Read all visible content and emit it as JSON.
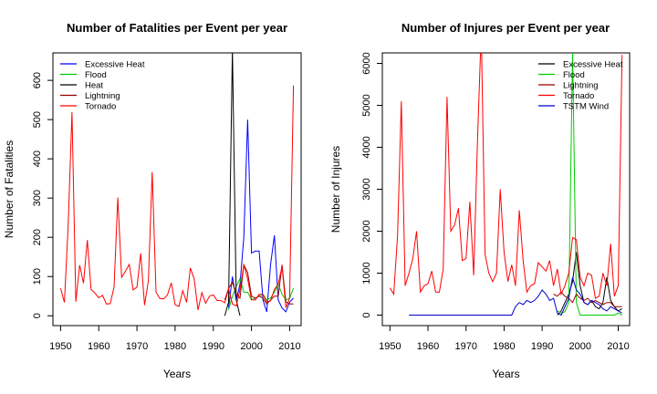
{
  "chart_data": [
    {
      "type": "line",
      "title": "Number of Fatalities per Event per year",
      "xlabel": "Years",
      "ylabel": "Number of Fatalities",
      "xlim": [
        1948,
        2013
      ],
      "ylim": [
        -25,
        670
      ],
      "xticks": [
        1950,
        1960,
        1970,
        1980,
        1990,
        2000,
        2010
      ],
      "yticks": [
        0,
        100,
        200,
        300,
        400,
        500,
        600
      ],
      "legend_position": "top-left",
      "series": [
        {
          "name": "Excessive Heat",
          "color": "#0000ff",
          "x": [
            1994,
            1995,
            1996,
            1997,
            1998,
            1999,
            2000,
            2001,
            2002,
            2003,
            2004,
            2005,
            2006,
            2007,
            2008,
            2009,
            2010,
            2011
          ],
          "y": [
            20,
            100,
            40,
            80,
            200,
            500,
            160,
            165,
            165,
            40,
            10,
            130,
            205,
            40,
            20,
            10,
            35,
            45
          ]
        },
        {
          "name": "Flood",
          "color": "#00cc00",
          "x": [
            1994,
            1995,
            1996,
            1997,
            1998,
            1999,
            2000,
            2001,
            2002,
            2003,
            2004,
            2005,
            2006,
            2007,
            2008,
            2009,
            2010,
            2011
          ],
          "y": [
            15,
            50,
            75,
            95,
            60,
            60,
            40,
            45,
            50,
            55,
            40,
            45,
            60,
            80,
            55,
            40,
            45,
            70
          ]
        },
        {
          "name": "Heat",
          "color": "#000000",
          "x": [
            1993,
            1994,
            1995,
            1996,
            1997
          ],
          "y": [
            0,
            35,
            680,
            40,
            0
          ]
        },
        {
          "name": "Lightning",
          "color": "#990000",
          "x": [
            1993,
            1994,
            1995,
            1996,
            1997,
            1998,
            1999,
            2000,
            2001,
            2002,
            2003,
            2004,
            2005,
            2006,
            2007,
            2008,
            2009,
            2010,
            2011
          ],
          "y": [
            40,
            70,
            85,
            55,
            45,
            130,
            110,
            50,
            45,
            50,
            45,
            30,
            40,
            50,
            50,
            130,
            35,
            30,
            30
          ]
        },
        {
          "name": "Tornado",
          "color": "#ff0000",
          "x": [
            1950,
            1951,
            1952,
            1953,
            1954,
            1955,
            1956,
            1957,
            1958,
            1959,
            1960,
            1961,
            1962,
            1963,
            1964,
            1965,
            1966,
            1967,
            1968,
            1969,
            1970,
            1971,
            1972,
            1973,
            1974,
            1975,
            1976,
            1977,
            1978,
            1979,
            1980,
            1981,
            1982,
            1983,
            1984,
            1985,
            1986,
            1987,
            1988,
            1989,
            1990,
            1991,
            1992,
            1993,
            1994,
            1995,
            1996,
            1997,
            1998,
            1999,
            2000,
            2001,
            2002,
            2003,
            2004,
            2005,
            2006,
            2007,
            2008,
            2009,
            2010,
            2011
          ],
          "y": [
            70,
            34,
            230,
            519,
            36,
            129,
            83,
            193,
            67,
            58,
            46,
            52,
            30,
            31,
            73,
            301,
            98,
            114,
            131,
            66,
            73,
            159,
            27,
            89,
            366,
            60,
            44,
            43,
            53,
            84,
            28,
            24,
            64,
            34,
            122,
            94,
            15,
            59,
            32,
            50,
            53,
            39,
            39,
            33,
            69,
            30,
            25,
            67,
            130,
            94,
            41,
            40,
            55,
            54,
            35,
            38,
            67,
            81,
            126,
            21,
            45,
            587
          ]
        }
      ]
    },
    {
      "type": "line",
      "title": "Number of Injures per Event per year",
      "xlabel": "Years",
      "ylabel": "Number of Injures",
      "xlim": [
        1948,
        2013
      ],
      "ylim": [
        -250,
        6250
      ],
      "xticks": [
        1950,
        1960,
        1970,
        1980,
        1990,
        2000,
        2010
      ],
      "yticks": [
        0,
        1000,
        2000,
        3000,
        4000,
        5000,
        6000
      ],
      "legend_position": "top-right",
      "series": [
        {
          "name": "Excessive Heat",
          "color": "#000000",
          "x": [
            1994,
            1995,
            1996,
            1997,
            1998,
            1999,
            2000,
            2001,
            2002,
            2003,
            2004,
            2005,
            2006,
            2007,
            2008,
            2009,
            2010,
            2011
          ],
          "y": [
            0,
            100,
            300,
            500,
            800,
            1500,
            700,
            300,
            250,
            350,
            200,
            150,
            300,
            900,
            350,
            200,
            100,
            150
          ]
        },
        {
          "name": "Flood",
          "color": "#00cc00",
          "x": [
            1994,
            1995,
            1996,
            1997,
            1998,
            1999,
            2000,
            2001,
            2002,
            2003,
            2004,
            2005,
            2006,
            2007,
            2008,
            2009,
            2010,
            2011
          ],
          "y": [
            100,
            50,
            80,
            300,
            6300,
            300,
            0,
            0,
            0,
            0,
            0,
            0,
            0,
            0,
            0,
            0,
            50,
            0
          ]
        },
        {
          "name": "Lightning",
          "color": "#990000",
          "x": [
            1993,
            1994,
            1995,
            1996,
            1997,
            1998,
            1999,
            2000,
            2001,
            2002,
            2003,
            2004,
            2005,
            2006,
            2007,
            2008,
            2009,
            2010,
            2011
          ],
          "y": [
            500,
            450,
            550,
            450,
            400,
            300,
            500,
            400,
            350,
            400,
            300,
            350,
            300,
            250,
            300,
            300,
            200,
            200,
            200
          ]
        },
        {
          "name": "Tornado",
          "color": "#ff0000",
          "x": [
            1950,
            1951,
            1952,
            1953,
            1954,
            1955,
            1956,
            1957,
            1958,
            1959,
            1960,
            1961,
            1962,
            1963,
            1964,
            1965,
            1966,
            1967,
            1968,
            1969,
            1970,
            1971,
            1972,
            1973,
            1974,
            1975,
            1976,
            1977,
            1978,
            1979,
            1980,
            1981,
            1982,
            1983,
            1984,
            1985,
            1986,
            1987,
            1988,
            1989,
            1990,
            1991,
            1992,
            1993,
            1994,
            1995,
            1996,
            1997,
            1998,
            1999,
            2000,
            2001,
            2002,
            2003,
            2004,
            2005,
            2006,
            2007,
            2008,
            2009,
            2010,
            2011
          ],
          "y": [
            650,
            500,
            1900,
            5100,
            700,
            1000,
            1350,
            2000,
            550,
            700,
            750,
            1050,
            550,
            550,
            1100,
            5200,
            2000,
            2150,
            2550,
            1300,
            1350,
            2700,
            950,
            4100,
            6800,
            1450,
            1000,
            800,
            1000,
            3000,
            1500,
            800,
            1200,
            700,
            2500,
            1300,
            550,
            700,
            750,
            1250,
            1150,
            1050,
            1300,
            700,
            1100,
            500,
            700,
            1000,
            1850,
            1800,
            900,
            700,
            1000,
            950,
            400,
            450,
            1000,
            700,
            1700,
            450,
            700,
            6200
          ]
        },
        {
          "name": "TSTM Wind",
          "color": "#0000cc",
          "x": [
            1955,
            1960,
            1965,
            1970,
            1975,
            1980,
            1982,
            1983,
            1984,
            1985,
            1986,
            1987,
            1988,
            1989,
            1990,
            1991,
            1992,
            1993,
            1994,
            1995,
            1996,
            1997,
            1998,
            1999,
            2000,
            2001,
            2002,
            2003,
            2004,
            2005,
            2006,
            2007,
            2008,
            2009,
            2010,
            2011
          ],
          "y": [
            0,
            0,
            0,
            0,
            0,
            0,
            0,
            200,
            300,
            250,
            350,
            300,
            350,
            450,
            600,
            500,
            350,
            400,
            50,
            0,
            200,
            400,
            900,
            600,
            500,
            300,
            250,
            350,
            300,
            250,
            150,
            100,
            200,
            150,
            100,
            50
          ]
        }
      ]
    }
  ]
}
